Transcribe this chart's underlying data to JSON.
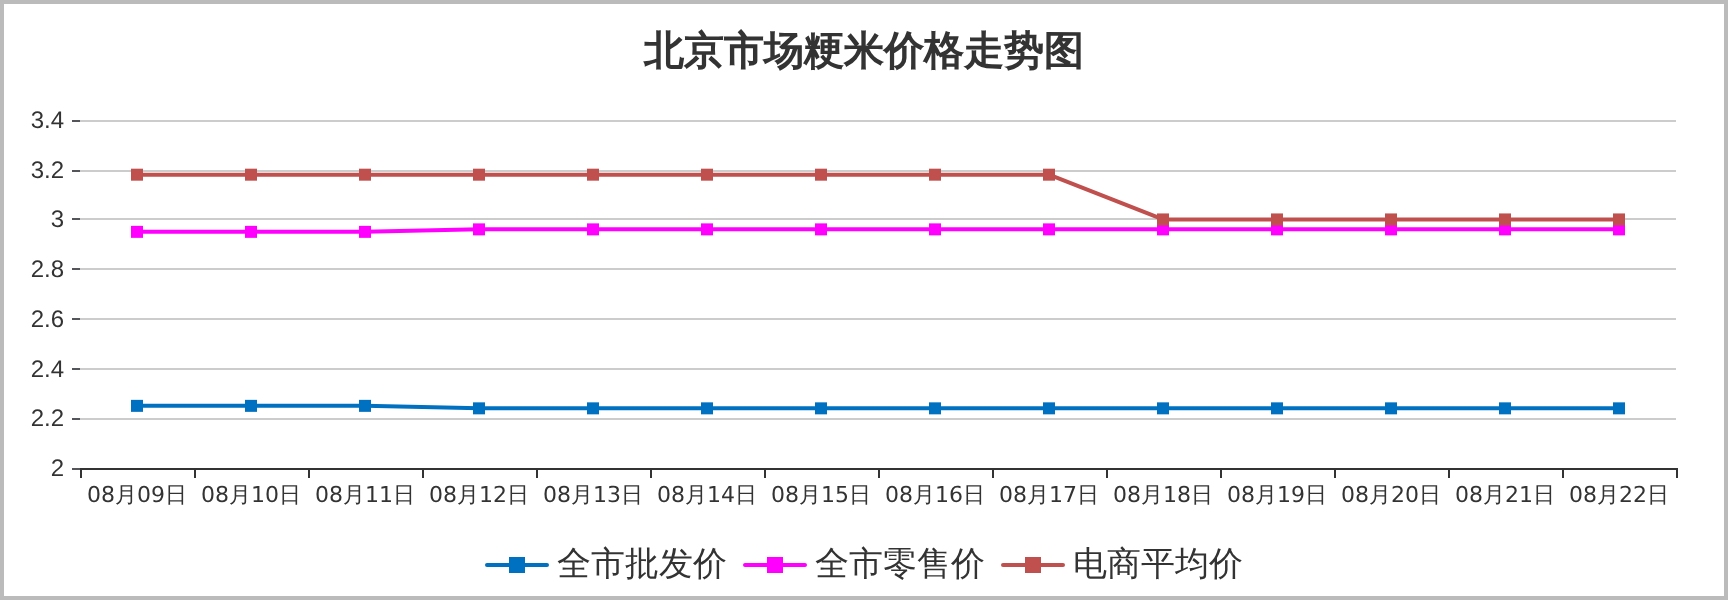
{
  "chart_data": {
    "type": "line",
    "title": "北京市场粳米价格走势图",
    "categories": [
      "08月09日",
      "08月10日",
      "08月11日",
      "08月12日",
      "08月13日",
      "08月14日",
      "08月15日",
      "08月16日",
      "08月17日",
      "08月18日",
      "08月19日",
      "08月20日",
      "08月21日",
      "08月22日"
    ],
    "series": [
      {
        "name": "全市批发价",
        "color": "#0070c0",
        "values": [
          2.25,
          2.25,
          2.25,
          2.24,
          2.24,
          2.24,
          2.24,
          2.24,
          2.24,
          2.24,
          2.24,
          2.24,
          2.24,
          2.24
        ]
      },
      {
        "name": "全市零售价",
        "color": "#ff00ff",
        "values": [
          2.95,
          2.95,
          2.95,
          2.96,
          2.96,
          2.96,
          2.96,
          2.96,
          2.96,
          2.96,
          2.96,
          2.96,
          2.96,
          2.96
        ]
      },
      {
        "name": "电商平均价",
        "color": "#c0504d",
        "values": [
          3.18,
          3.18,
          3.18,
          3.18,
          3.18,
          3.18,
          3.18,
          3.18,
          3.18,
          3.0,
          3.0,
          3.0,
          3.0,
          3.0
        ]
      }
    ],
    "ylim": [
      2,
      3.4
    ],
    "yticks": [
      2,
      2.2,
      2.4,
      2.6,
      2.8,
      3,
      3.2,
      3.4
    ],
    "grid": "y",
    "legend": "bottom",
    "marker": "square",
    "line_style": "solid"
  }
}
